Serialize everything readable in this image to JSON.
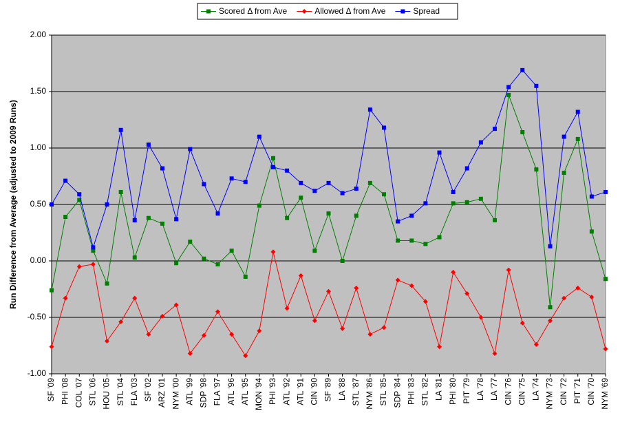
{
  "chart_data": {
    "type": "line",
    "y_label": "Run Difference from Average (adjusted to 2009 Runs)",
    "categories": [
      "SF '09",
      "PHI '08",
      "COL '07",
      "STL '06",
      "HOU '05",
      "STL '04",
      "FLA '03",
      "SF '02",
      "ARZ '01",
      "NYM '00",
      "ATL '99",
      "SDP '98",
      "FLA '97",
      "ATL '96",
      "ATL '95",
      "MON '94",
      "PHI '93",
      "ATL '92",
      "ATL '91",
      "CIN '90",
      "SF '89",
      "LA '88",
      "STL '87",
      "NYM '86",
      "STL '85",
      "SDP '84",
      "PHI '83",
      "STL '82",
      "LA '81",
      "PHI '80",
      "PIT '79",
      "LA '78",
      "LA '77",
      "CIN '76",
      "CIN '75",
      "LA '74",
      "NYM '73",
      "CIN '72",
      "PIT '71",
      "CIN '70",
      "NYM '69"
    ],
    "series": [
      {
        "name": "Scored Δ from Ave",
        "color": "#008000",
        "values": [
          -0.26,
          0.39,
          0.54,
          0.09,
          -0.2,
          0.61,
          0.03,
          0.38,
          0.33,
          -0.02,
          0.17,
          0.02,
          -0.03,
          0.09,
          -0.14,
          0.49,
          0.91,
          0.38,
          0.56,
          0.09,
          0.42,
          0.0,
          0.4,
          0.69,
          0.59,
          0.18,
          0.18,
          0.15,
          0.21,
          0.51,
          0.52,
          0.55,
          0.36,
          1.47,
          1.14,
          0.81,
          -0.41,
          0.78,
          1.08,
          0.26,
          -0.16
        ]
      },
      {
        "name": "Allowed Δ from Ave",
        "color": "#ff0000",
        "values": [
          -0.76,
          -0.33,
          -0.05,
          -0.03,
          -0.71,
          -0.54,
          -0.33,
          -0.65,
          -0.49,
          -0.39,
          -0.82,
          -0.66,
          -0.45,
          -0.65,
          -0.84,
          -0.62,
          0.08,
          -0.42,
          -0.13,
          -0.53,
          -0.27,
          -0.6,
          -0.24,
          -0.65,
          -0.59,
          -0.17,
          -0.22,
          -0.36,
          -0.76,
          -0.1,
          -0.29,
          -0.5,
          -0.82,
          -0.08,
          -0.55,
          -0.74,
          -0.53,
          -0.33,
          -0.24,
          -0.32,
          -0.78
        ]
      },
      {
        "name": "Spread",
        "color": "#0000ff",
        "values": [
          0.5,
          0.71,
          0.59,
          0.12,
          0.5,
          1.16,
          0.36,
          1.03,
          0.82,
          0.37,
          0.99,
          0.68,
          0.42,
          0.73,
          0.7,
          1.1,
          0.83,
          0.8,
          0.69,
          0.62,
          0.69,
          0.6,
          0.64,
          1.34,
          1.18,
          0.35,
          0.4,
          0.51,
          0.96,
          0.61,
          0.82,
          1.05,
          1.17,
          1.54,
          1.69,
          1.55,
          0.13,
          1.1,
          1.32,
          0.57,
          0.61
        ]
      }
    ],
    "ylim": [
      -1,
      2
    ],
    "yticks": [
      {
        "value": -1,
        "label": "-1.00"
      },
      {
        "value": -0.5,
        "label": "-0.50"
      },
      {
        "value": 0,
        "label": "0.00"
      },
      {
        "value": 0.5,
        "label": "0.50"
      },
      {
        "value": 1,
        "label": "1.00"
      },
      {
        "value": 1.5,
        "label": "1.50"
      },
      {
        "value": 2,
        "label": "2.00"
      }
    ],
    "grid": true,
    "legend": "top",
    "plot_background": "#c0c0c0"
  }
}
